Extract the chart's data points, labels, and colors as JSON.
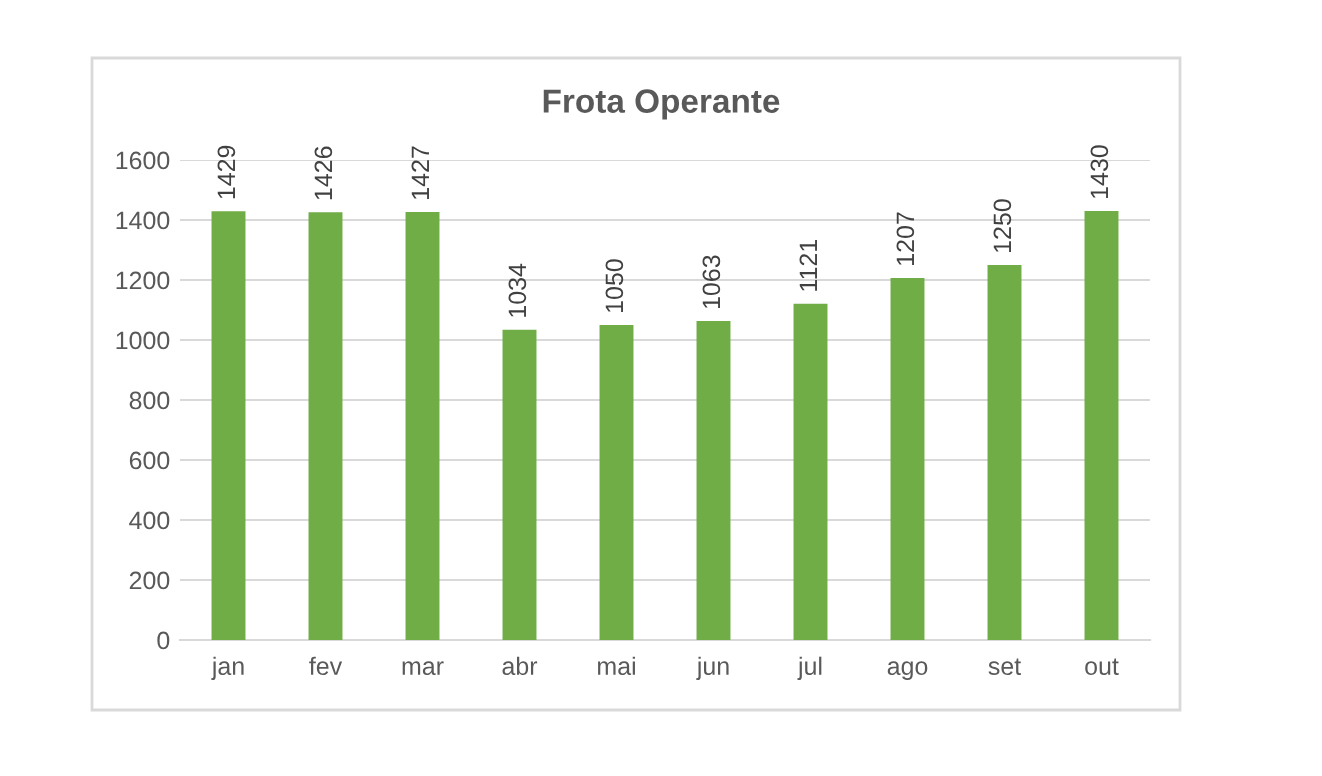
{
  "chart_data": {
    "type": "bar",
    "title": "Frota Operante",
    "categories": [
      "jan",
      "fev",
      "mar",
      "abr",
      "mai",
      "jun",
      "jul",
      "ago",
      "set",
      "out"
    ],
    "values": [
      1429,
      1426,
      1427,
      1034,
      1050,
      1063,
      1121,
      1207,
      1250,
      1430
    ],
    "color": "#70ad47",
    "ylim": [
      0,
      1600
    ],
    "yticks": [
      0,
      200,
      400,
      600,
      800,
      1000,
      1200,
      1400,
      1600
    ],
    "grid": "y",
    "data_labels": true
  }
}
